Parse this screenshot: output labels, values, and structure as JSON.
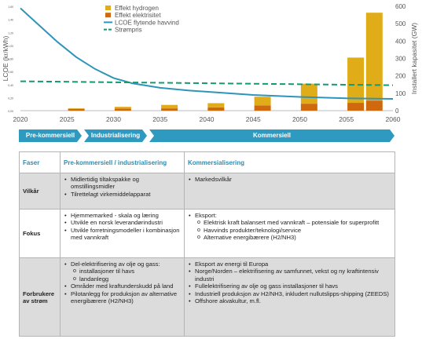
{
  "chart_data": {
    "type": "bar",
    "x_ticks": [
      2020,
      2025,
      2030,
      2035,
      2040,
      2045,
      2050,
      2055,
      2060
    ],
    "x_range": [
      2020,
      2060
    ],
    "categories": [
      2026,
      2031,
      2036,
      2041,
      2046,
      2051,
      2056,
      2058
    ],
    "ylabel_left": "LCOE (kr/kWh)",
    "ylabel_right": "Installert kapasitet (GW)",
    "y_left_ticks": [
      "0,00",
      "0,20",
      "0,40",
      "0,60",
      "0,80",
      "1,00",
      "1,20",
      "1,40",
      "1,60"
    ],
    "y_left_range": [
      0,
      1.6
    ],
    "y_right_ticks": [
      0,
      100,
      200,
      300,
      400,
      500,
      600
    ],
    "y_right_range": [
      0,
      600
    ],
    "series": [
      {
        "name": "Effekt hydrogen",
        "kind": "stacked-bar",
        "color": "#e0ac18",
        "values": [
          4,
          10,
          20,
          24,
          50,
          115,
          260,
          505
        ]
      },
      {
        "name": "Effekt elektrisitet",
        "kind": "stacked-bar",
        "color": "#d0680e",
        "values": [
          10,
          12,
          13,
          19,
          30,
          40,
          45,
          58
        ]
      },
      {
        "name": "LCOE flytende havvind",
        "kind": "line",
        "axis": "left",
        "color": "#2f95b8",
        "x": [
          2020,
          2022,
          2024,
          2026,
          2028,
          2030,
          2032,
          2035,
          2038,
          2040,
          2045,
          2050,
          2055,
          2060
        ],
        "y": [
          1.57,
          1.31,
          1.05,
          0.82,
          0.64,
          0.5,
          0.42,
          0.35,
          0.31,
          0.29,
          0.24,
          0.21,
          0.19,
          0.18
        ]
      },
      {
        "name": "Strømpris",
        "kind": "dashed-line",
        "axis": "left",
        "color": "#139a72",
        "x": [
          2020,
          2060
        ],
        "y": [
          0.45,
          0.39
        ]
      }
    ]
  },
  "phases": [
    {
      "label": "Pre-kommersiell",
      "color": "#2e9ac0"
    },
    {
      "label": "Industrialisering",
      "color": "#2e9ac0"
    },
    {
      "label": "Kommersiell",
      "color": "#2e9ac0"
    }
  ],
  "table": {
    "headers": [
      "Faser",
      "Pre-kommersiell / industrialisering",
      "Kommersialisering"
    ],
    "rows": [
      {
        "label": "Vilkår",
        "left": [
          {
            "text": "Midlertidig tiltakspakke og omstillingsmidler"
          },
          {
            "text": "Tilrettelagt virkemiddelapparat"
          }
        ],
        "right": [
          {
            "text": "Markedsvilkår"
          }
        ]
      },
      {
        "label": "Fokus",
        "left": [
          {
            "text": "Hjemmemarked - skala og læring"
          },
          {
            "text": "Utvikle en norsk leverandørindustri"
          },
          {
            "text": "Utvikle forretningsmodeller i kombinasjon med vannkraft"
          }
        ],
        "right": [
          {
            "text": "Eksport:",
            "sub": [
              "Elektrisk kraft balansert med vannkraft – potensiale for superprofitt",
              "Havvinds produkter/teknologi/service",
              "Alternative energibærere (H2/NH3)"
            ]
          }
        ]
      },
      {
        "label": "Forbrukere av strøm",
        "left": [
          {
            "text": "Del-elektrifisering av olje og gass:",
            "sub": [
              "installasjoner til havs",
              "landanlegg"
            ]
          },
          {
            "text": "Områder med kraftunderskudd på land"
          },
          {
            "text": "Pilotanlegg for produksjon av alternative energibærere (H2/NH3)"
          }
        ],
        "right": [
          {
            "text": "Eksport av energi til Europa"
          },
          {
            "text": "Norge/Norden – elektrifisering av samfunnet, vekst og ny kraftintensiv industri"
          },
          {
            "text": "Fullelektrifisering av olje og gass installasjoner til havs"
          },
          {
            "text": "Industriell produksjon av H2/NH3, inkludert nullutslipps-shipping (ZEEDS)"
          },
          {
            "text": "Offshore akvakultur, m.fl."
          }
        ]
      }
    ]
  }
}
